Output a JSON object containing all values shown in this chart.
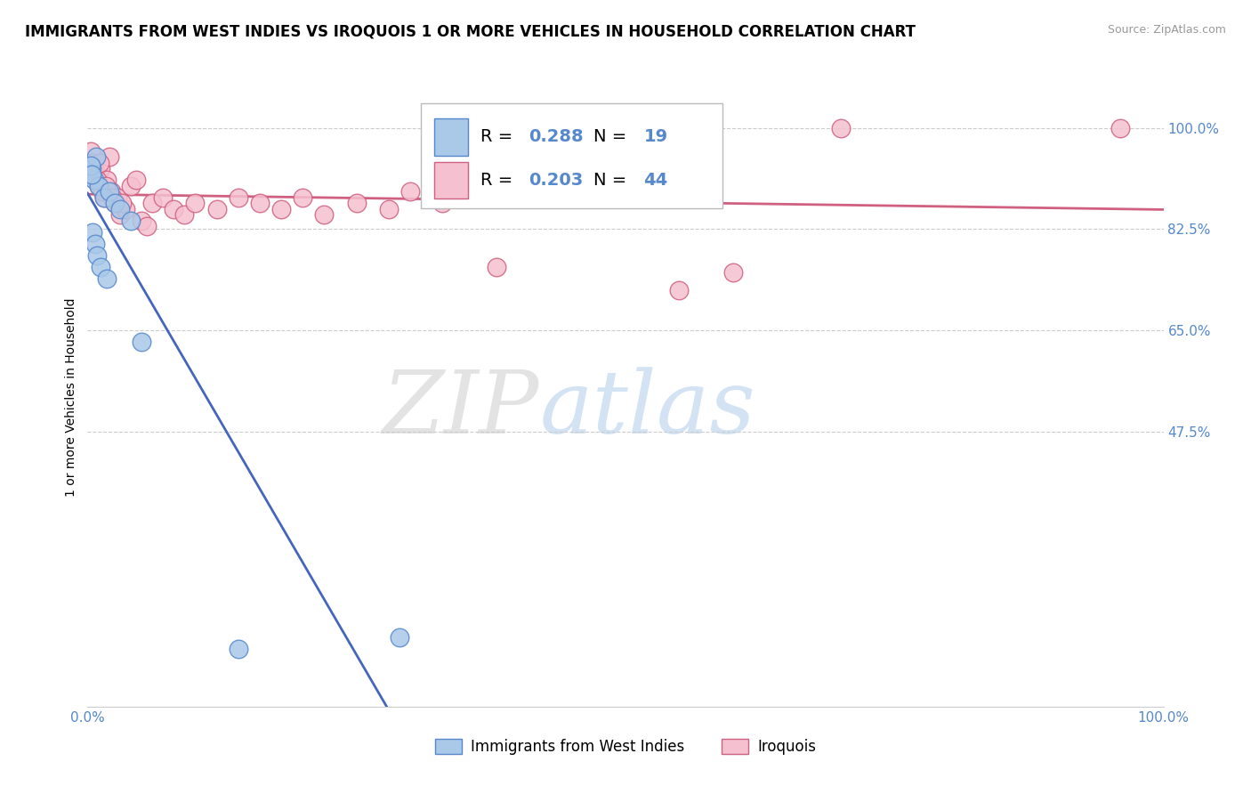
{
  "title": "IMMIGRANTS FROM WEST INDIES VS IROQUOIS 1 OR MORE VEHICLES IN HOUSEHOLD CORRELATION CHART",
  "source_text": "Source: ZipAtlas.com",
  "ylabel": "1 or more Vehicles in Household",
  "watermark_zip": "ZIP",
  "watermark_atlas": "atlas",
  "legend_blue_label": "Immigrants from West Indies",
  "legend_pink_label": "Iroquois",
  "blue_R": 0.288,
  "blue_N": 19,
  "pink_R": 0.203,
  "pink_N": 44,
  "xlim": [
    0.0,
    100.0
  ],
  "ylim": [
    0.0,
    107.0
  ],
  "ytick_positions": [
    100.0,
    82.5,
    65.0,
    47.5
  ],
  "ytick_labels": [
    "100.0%",
    "82.5%",
    "65.0%",
    "47.5%"
  ],
  "xtick_positions": [
    0.0,
    100.0
  ],
  "xtick_labels": [
    "0.0%",
    "100.0%"
  ],
  "blue_fill": "#aac8e8",
  "blue_edge": "#5588cc",
  "pink_fill": "#f5c0d0",
  "pink_edge": "#d06080",
  "pink_line_color": "#d06080",
  "blue_line_color": "#4466bb",
  "grid_color": "#cccccc",
  "bg": "#ffffff",
  "title_fs": 12,
  "ylabel_fs": 10,
  "tick_fs": 11,
  "legend_fs": 14,
  "source_fs": 9,
  "blue_x": [
    0.4,
    0.6,
    0.8,
    1.0,
    1.5,
    2.0,
    2.5,
    3.0,
    4.0,
    5.0,
    0.5,
    0.7,
    0.9,
    1.2,
    1.8,
    14.0,
    29.0,
    0.3,
    0.35
  ],
  "blue_y": [
    93.0,
    91.0,
    95.0,
    90.0,
    88.0,
    89.0,
    87.0,
    86.0,
    84.0,
    63.0,
    82.0,
    80.0,
    78.0,
    76.0,
    74.0,
    10.0,
    12.0,
    93.5,
    92.0
  ],
  "pink_x": [
    0.3,
    0.5,
    0.8,
    1.0,
    1.2,
    1.5,
    1.8,
    2.0,
    2.2,
    2.5,
    2.8,
    3.0,
    3.5,
    4.0,
    5.0,
    6.0,
    7.0,
    8.0,
    9.0,
    10.0,
    12.0,
    14.0,
    16.0,
    18.0,
    20.0,
    22.0,
    25.0,
    28.0,
    30.0,
    33.0,
    0.6,
    0.9,
    1.1,
    1.4,
    1.7,
    2.3,
    3.2,
    4.5,
    38.0,
    55.0,
    60.0,
    70.0,
    96.0,
    5.5
  ],
  "pink_y": [
    96.0,
    94.0,
    92.0,
    90.0,
    93.0,
    88.0,
    91.0,
    95.0,
    89.0,
    87.0,
    88.0,
    85.0,
    86.0,
    90.0,
    84.0,
    87.0,
    88.0,
    86.0,
    85.0,
    87.0,
    86.0,
    88.0,
    87.0,
    86.0,
    88.0,
    85.0,
    87.0,
    86.0,
    89.0,
    87.0,
    93.0,
    91.0,
    94.0,
    89.0,
    90.0,
    88.0,
    87.0,
    91.0,
    76.0,
    72.0,
    75.0,
    100.0,
    100.0,
    83.0
  ]
}
